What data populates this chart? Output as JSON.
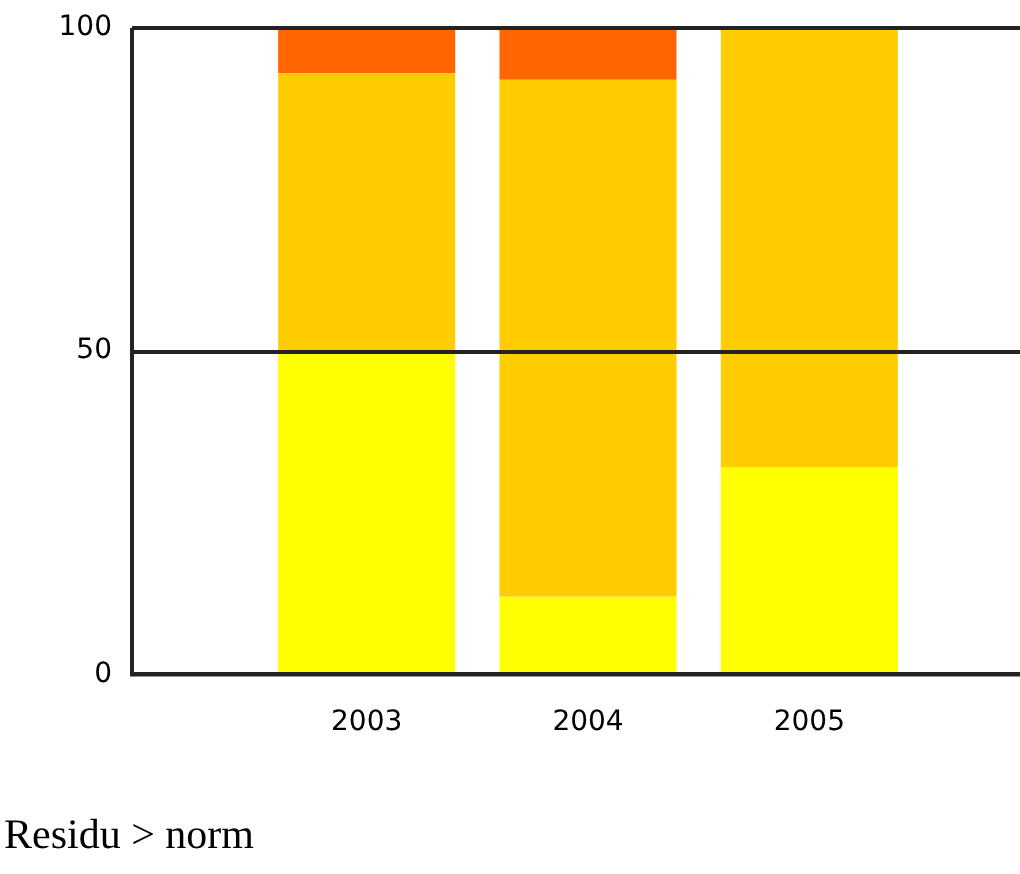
{
  "chart_data": {
    "type": "bar",
    "stacked": true,
    "categories": [
      "2003",
      "2004",
      "2005"
    ],
    "series": [
      {
        "color": "#ffff00",
        "values": [
          50,
          12,
          32
        ]
      },
      {
        "color": "#ffcc00",
        "values": [
          43,
          80,
          68
        ]
      },
      {
        "color": "#ff6600",
        "values": [
          7,
          8,
          0
        ]
      }
    ],
    "ylim": [
      0,
      100
    ],
    "yticks": [
      0,
      50,
      100
    ],
    "grid": "y",
    "legend": false,
    "annotations": [
      "Residu > norm"
    ]
  }
}
